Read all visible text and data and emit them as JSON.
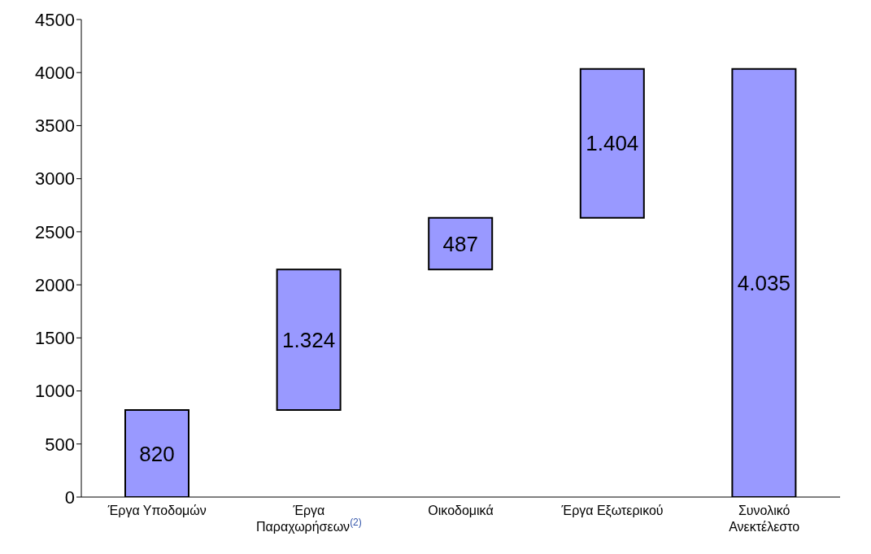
{
  "chart_data": {
    "type": "bar",
    "categories": [
      "Έργα Υποδομών",
      "Έργα Παραχωρήσεων$^{(2)}$",
      "Οικοδομικά",
      "Έργα Εξωτερικού",
      "Συνολικό Ανεκτέλεστο"
    ],
    "values": [
      820,
      1324,
      487,
      1404,
      4035
    ],
    "base": [
      0,
      820,
      2144,
      2631,
      0
    ],
    "value_labels": [
      "820",
      "1.324",
      "487",
      "1.404",
      "4.035"
    ],
    "color": "#9999ff",
    "ylim": [
      0,
      4500
    ],
    "yticks": [
      0,
      500,
      1000,
      1500,
      2000,
      2500,
      3000,
      3500,
      4000,
      4500
    ]
  }
}
